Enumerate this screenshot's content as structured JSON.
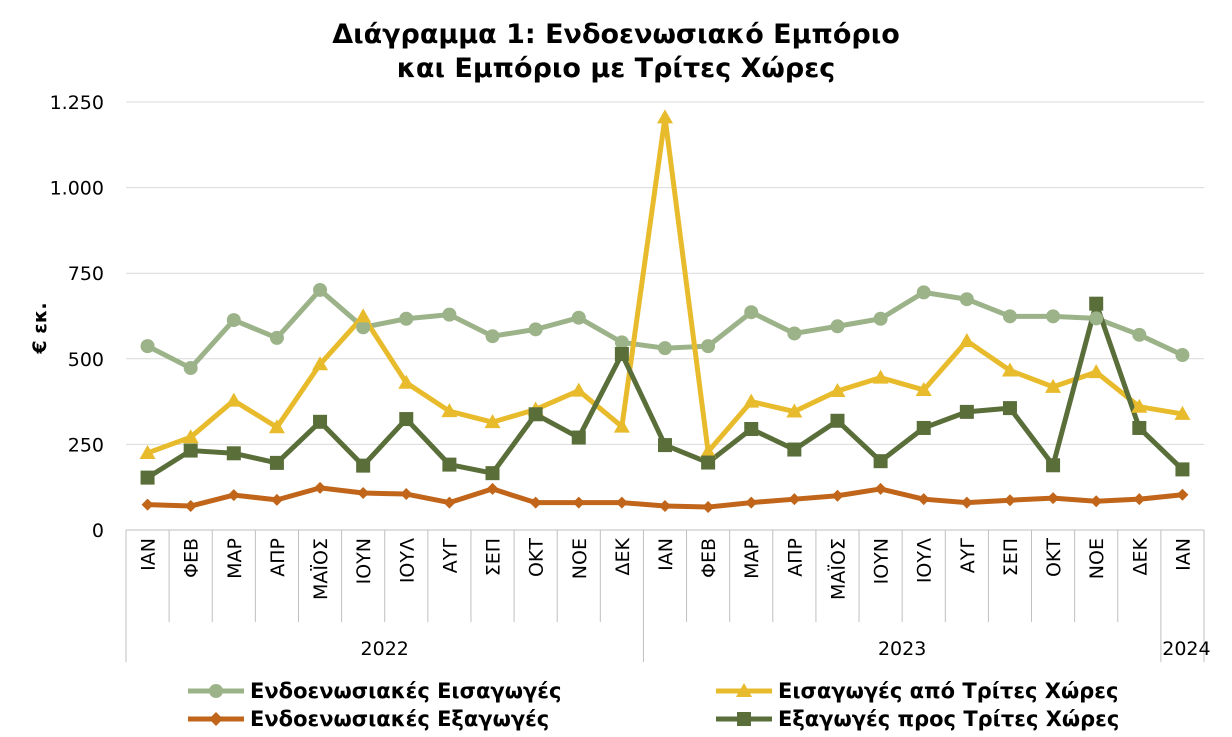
{
  "chart_data": {
    "type": "line",
    "title_line1": "Διάγραμμα 1: Ενδοενωσιακό Εμπόριο",
    "title_line2": "και Εμπόριο με Τρίτες Χώρες",
    "ylabel": "€ εκ.",
    "ylim": [
      0,
      1250
    ],
    "yticks": [
      {
        "value": 0,
        "label": "0"
      },
      {
        "value": 250,
        "label": "250"
      },
      {
        "value": 500,
        "label": "500"
      },
      {
        "value": 750,
        "label": "750"
      },
      {
        "value": 1000,
        "label": "1.000"
      },
      {
        "value": 1250,
        "label": "1.250"
      }
    ],
    "categories": [
      "ΙΑΝ",
      "ΦΕΒ",
      "ΜΑΡ",
      "ΑΠΡ",
      "ΜΑΪΟΣ",
      "ΙΟΥΝ",
      "ΙΟΥΛ",
      "ΑΥΓ",
      "ΣΕΠ",
      "ΟΚΤ",
      "ΝΟΕ",
      "ΔΕΚ",
      "ΙΑΝ",
      "ΦΕΒ",
      "ΜΑΡ",
      "ΑΠΡ",
      "ΜΑΪΟΣ",
      "ΙΟΥΝ",
      "ΙΟΥΛ",
      "ΑΥΓ",
      "ΣΕΠ",
      "ΟΚΤ",
      "ΝΟΕ",
      "ΔΕΚ",
      "ΙΑΝ"
    ],
    "years": [
      {
        "label": "2022",
        "count": 12
      },
      {
        "label": "2023",
        "count": 12
      },
      {
        "label": "2024",
        "count": 1
      }
    ],
    "grid": "horizontal",
    "legend_position": "bottom",
    "series": [
      {
        "name": "Ενδοενωσιακές Εισαγωγές",
        "color": "#9cb38a",
        "marker": "circle",
        "values": [
          537,
          473,
          613,
          561,
          701,
          592,
          617,
          629,
          566,
          586,
          620,
          548,
          531,
          537,
          636,
          574,
          595,
          617,
          694,
          674,
          624,
          624,
          618,
          570,
          511
        ]
      },
      {
        "name": "Εισαγωγές από Τρίτες Χώρες",
        "color": "#e8bb2c",
        "marker": "triangle",
        "values": [
          225,
          271,
          378,
          300,
          484,
          624,
          430,
          347,
          315,
          352,
          407,
          302,
          1205,
          229,
          375,
          346,
          406,
          445,
          409,
          552,
          466,
          418,
          461,
          360,
          339
        ]
      },
      {
        "name": "Ενδοενωσιακές Εξαγωγές",
        "color": "#c0651a",
        "marker": "diamond",
        "values": [
          74,
          70,
          102,
          88,
          123,
          108,
          105,
          80,
          120,
          80,
          80,
          80,
          70,
          67,
          80,
          90,
          100,
          120,
          90,
          80,
          87,
          93,
          84,
          90,
          103
        ]
      },
      {
        "name": "Εξαγωγές προς Τρίτες Χώρες",
        "color": "#5a6e3a",
        "marker": "square",
        "values": [
          153,
          232,
          224,
          196,
          316,
          188,
          324,
          191,
          166,
          338,
          270,
          514,
          248,
          197,
          295,
          235,
          319,
          201,
          298,
          345,
          356,
          189,
          661,
          298,
          177
        ]
      }
    ]
  }
}
